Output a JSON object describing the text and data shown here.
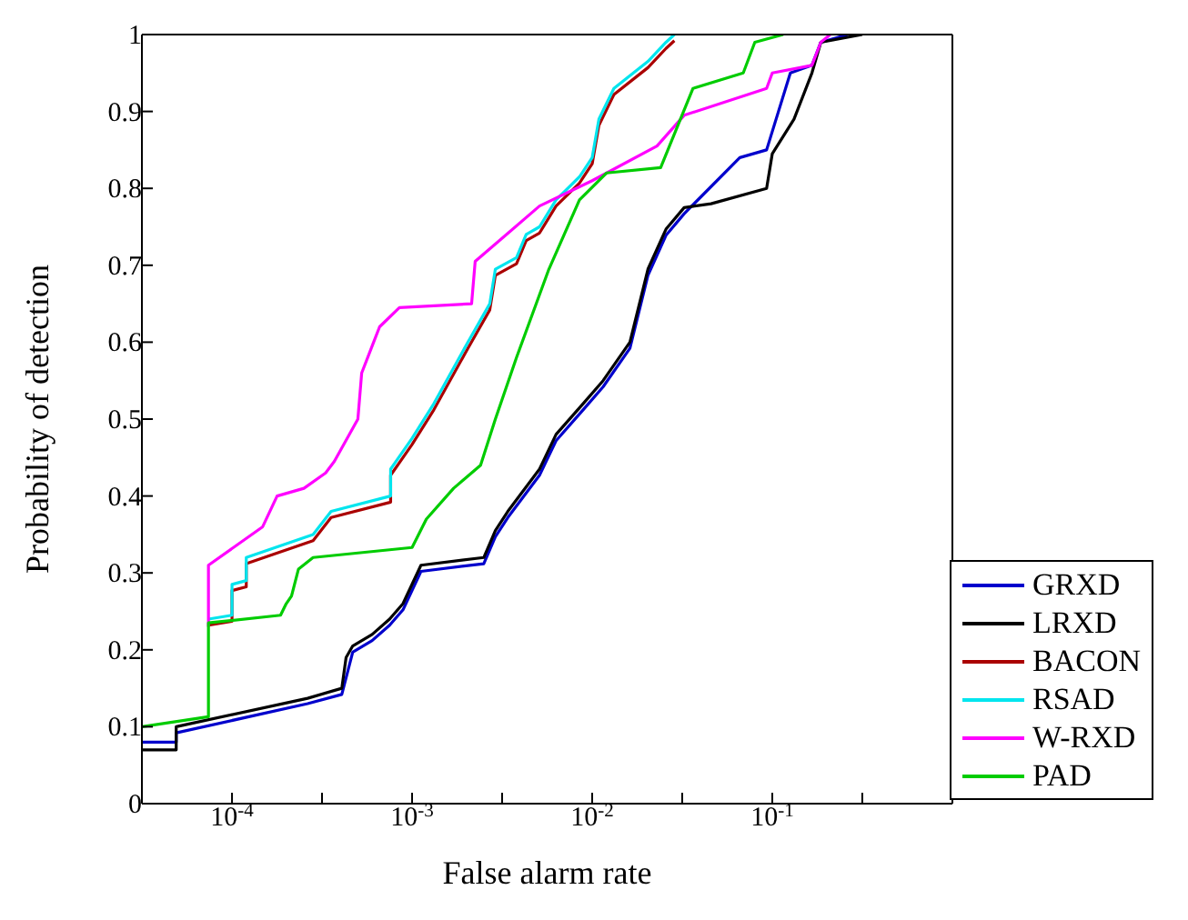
{
  "chart_data": {
    "type": "line",
    "xlabel": "False alarm rate",
    "ylabel": "Probability of detection",
    "log": "x",
    "xlim": [
      3.16e-05,
      1
    ],
    "xticks": [
      {
        "value": 0.0001,
        "label": "10$^{-4}$"
      },
      {
        "value": 0.000316,
        "label": null
      },
      {
        "value": 0.001,
        "label": "10$^{-3}$"
      },
      {
        "value": 0.00316,
        "label": null
      },
      {
        "value": 0.01,
        "label": "10$^{-2}$"
      },
      {
        "value": 0.0316,
        "label": null
      },
      {
        "value": 0.1,
        "label": "10$^{-1}$"
      },
      {
        "value": 0.316,
        "label": null
      }
    ],
    "ylim": [
      0,
      1
    ],
    "yticks": [
      0,
      0.1,
      0.2,
      0.3,
      0.4,
      0.5,
      0.6,
      0.7,
      0.8,
      0.9,
      1
    ],
    "legend": "bottom right",
    "series": [
      {
        "name": "GRXD",
        "color": "#0000cc",
        "x": [
          3.16e-05,
          4.9e-05,
          4.9e-05,
          0.000263,
          0.000407,
          0.000468,
          0.0006,
          0.00075,
          0.00089,
          0.00112,
          0.0025,
          0.0029,
          0.0034,
          0.0051,
          0.0063,
          0.0089,
          0.0115,
          0.0162,
          0.0204,
          0.0257,
          0.0324,
          0.066,
          0.093,
          0.126,
          0.166,
          0.186,
          0.263
        ],
        "values": [
          0.08,
          0.08,
          0.092,
          0.13,
          0.142,
          0.197,
          0.212,
          0.232,
          0.252,
          0.302,
          0.312,
          0.347,
          0.372,
          0.427,
          0.472,
          0.512,
          0.542,
          0.592,
          0.687,
          0.739,
          0.767,
          0.84,
          0.85,
          0.95,
          0.96,
          0.99,
          1
        ]
      },
      {
        "name": "LRXD",
        "color": "#000000",
        "x": [
          3.16e-05,
          4.9e-05,
          4.9e-05,
          0.000263,
          0.000407,
          0.00043,
          0.000468,
          0.0006,
          0.00075,
          0.00089,
          0.00112,
          0.0025,
          0.0029,
          0.0034,
          0.0051,
          0.0063,
          0.0089,
          0.0115,
          0.0162,
          0.0204,
          0.0257,
          0.0324,
          0.0457,
          0.093,
          0.1,
          0.132,
          0.166,
          0.186,
          0.316
        ],
        "values": [
          0.07,
          0.07,
          0.1,
          0.137,
          0.15,
          0.19,
          0.205,
          0.22,
          0.24,
          0.26,
          0.31,
          0.32,
          0.355,
          0.38,
          0.435,
          0.48,
          0.52,
          0.55,
          0.6,
          0.695,
          0.747,
          0.775,
          0.78,
          0.8,
          0.845,
          0.89,
          0.95,
          0.99,
          1
        ]
      },
      {
        "name": "BACON",
        "color": "#aa0000",
        "x": [
          7.4e-05,
          0.0001,
          0.0001,
          0.00012,
          0.00012,
          0.000282,
          0.000355,
          0.00076,
          0.00076,
          0.001,
          0.00132,
          0.00204,
          0.0027,
          0.0029,
          0.0038,
          0.0043,
          0.0051,
          0.0063,
          0.0085,
          0.01,
          0.0109,
          0.0132,
          0.0204,
          0.0257,
          0.0286
        ],
        "values": [
          0.232,
          0.237,
          0.277,
          0.282,
          0.312,
          0.342,
          0.372,
          0.392,
          0.427,
          0.467,
          0.512,
          0.592,
          0.642,
          0.687,
          0.702,
          0.732,
          0.742,
          0.777,
          0.807,
          0.832,
          0.882,
          0.922,
          0.957,
          0.982,
          0.992
        ]
      },
      {
        "name": "RSAD",
        "color": "#00e5ee",
        "x": [
          7.4e-05,
          0.0001,
          0.0001,
          0.00012,
          0.00012,
          0.000282,
          0.000355,
          0.00076,
          0.00076,
          0.001,
          0.00132,
          0.00204,
          0.0027,
          0.0029,
          0.0038,
          0.0043,
          0.0051,
          0.0063,
          0.0085,
          0.01,
          0.0109,
          0.0132,
          0.0204,
          0.0257,
          0.0286
        ],
        "values": [
          0.24,
          0.245,
          0.285,
          0.29,
          0.32,
          0.35,
          0.38,
          0.4,
          0.435,
          0.475,
          0.52,
          0.6,
          0.65,
          0.695,
          0.71,
          0.74,
          0.75,
          0.785,
          0.815,
          0.84,
          0.89,
          0.93,
          0.965,
          0.99,
          1
        ]
      },
      {
        "name": "W-RXD",
        "color": "#ff00ff",
        "x": [
          7.4e-05,
          7.4e-05,
          0.000148,
          0.000178,
          0.000251,
          0.000331,
          0.00037,
          0.0005,
          0.000525,
          0.0006,
          0.00066,
          0.00085,
          0.00214,
          0.00224,
          0.0051,
          0.01,
          0.0229,
          0.0324,
          0.093,
          0.1,
          0.166,
          0.186,
          0.21
        ],
        "values": [
          0.23,
          0.31,
          0.36,
          0.4,
          0.41,
          0.43,
          0.445,
          0.5,
          0.56,
          0.595,
          0.62,
          0.645,
          0.65,
          0.705,
          0.777,
          0.81,
          0.855,
          0.895,
          0.93,
          0.95,
          0.96,
          0.99,
          1
        ]
      },
      {
        "name": "PAD",
        "color": "#00cc00",
        "x": [
          3.16e-05,
          7.4e-05,
          7.4e-05,
          0.000186,
          0.0002,
          0.000214,
          0.000234,
          0.000282,
          0.001,
          0.0012,
          0.0017,
          0.0024,
          0.0029,
          0.0038,
          0.00575,
          0.0085,
          0.012,
          0.024,
          0.0363,
          0.069,
          0.08,
          0.115
        ],
        "values": [
          0.1,
          0.113,
          0.235,
          0.245,
          0.26,
          0.27,
          0.305,
          0.32,
          0.333,
          0.37,
          0.41,
          0.44,
          0.5,
          0.58,
          0.695,
          0.785,
          0.82,
          0.827,
          0.93,
          0.95,
          0.99,
          1
        ]
      }
    ]
  }
}
